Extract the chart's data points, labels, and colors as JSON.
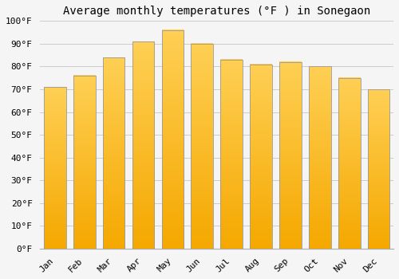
{
  "title": "Average monthly temperatures (°F ) in Sonegaon",
  "months": [
    "Jan",
    "Feb",
    "Mar",
    "Apr",
    "May",
    "Jun",
    "Jul",
    "Aug",
    "Sep",
    "Oct",
    "Nov",
    "Dec"
  ],
  "values": [
    71,
    76,
    84,
    91,
    96,
    90,
    83,
    81,
    82,
    80,
    75,
    70
  ],
  "bar_color_top": "#FFD055",
  "bar_color_bottom": "#F5A800",
  "bar_edge_color": "#999999",
  "ylim": [
    0,
    100
  ],
  "yticks": [
    0,
    10,
    20,
    30,
    40,
    50,
    60,
    70,
    80,
    90,
    100
  ],
  "ytick_labels": [
    "0°F",
    "10°F",
    "20°F",
    "30°F",
    "40°F",
    "50°F",
    "60°F",
    "70°F",
    "80°F",
    "90°F",
    "100°F"
  ],
  "background_color": "#f5f5f5",
  "grid_color": "#cccccc",
  "title_fontsize": 10,
  "tick_fontsize": 8,
  "bar_width": 0.75
}
